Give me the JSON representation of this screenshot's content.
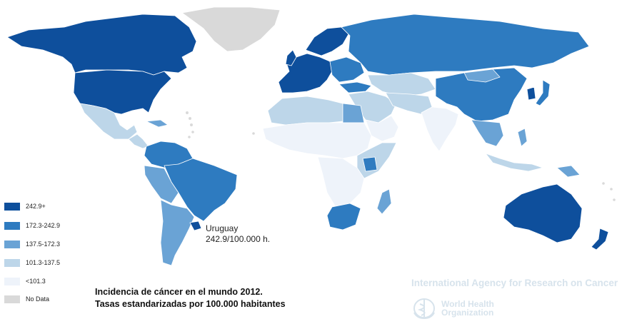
{
  "colors": {
    "c1": "#0e4f9c",
    "c2": "#2e7bc0",
    "c3": "#6aa3d5",
    "c4": "#bdd6e9",
    "c5": "#eef3fa",
    "nodata": "#d9d9d9",
    "border": "#ffffff"
  },
  "legend": [
    {
      "label": "242.9+",
      "color": "#0e4f9c"
    },
    {
      "label": "172.3-242.9",
      "color": "#2e7bc0"
    },
    {
      "label": "137.5-172.3",
      "color": "#6aa3d5"
    },
    {
      "label": "101.3-137.5",
      "color": "#bdd6e9"
    },
    {
      "label": "<101.3",
      "color": "#eef3fa"
    },
    {
      "label": "No Data",
      "color": "#d9d9d9"
    }
  ],
  "caption": {
    "line1": "Incidencia de cáncer en el mundo 2012.",
    "line2": "Tasas estandarizadas por 100.000 habitantes"
  },
  "callout": {
    "line1": "Uruguay",
    "line2": "242.9/100.000 h."
  },
  "watermark": {
    "agency": "International Agency for Research on Cancer",
    "who_line1": "World Health",
    "who_line2": "Organization",
    "who_logo_icon": "who-emblem-icon"
  }
}
